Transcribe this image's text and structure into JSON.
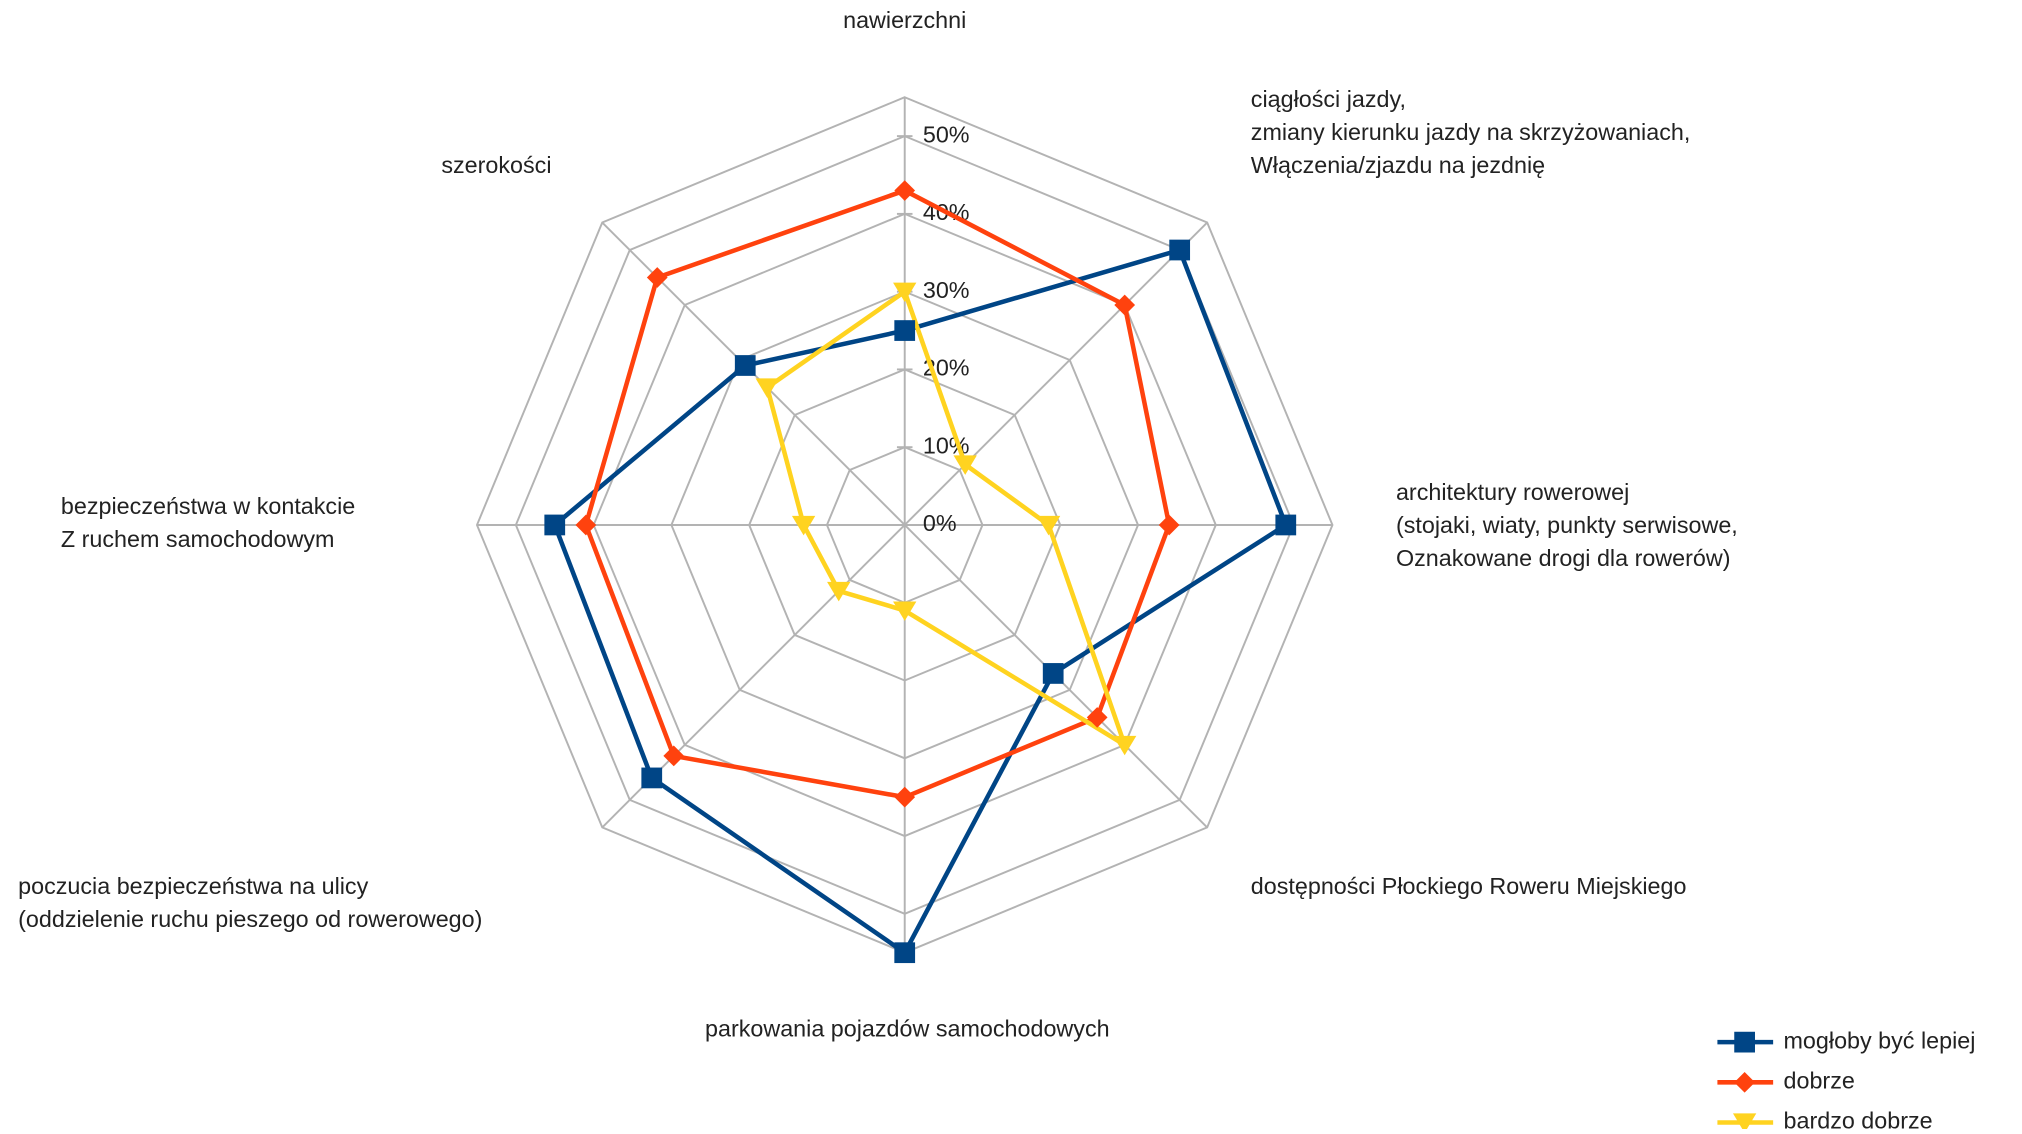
{
  "chart_data": {
    "type": "radar",
    "categories": [
      [
        "nawierzchni"
      ],
      [
        "ciągłości jazdy,",
        "zmiany kierunku jazdy na skrzyżowaniach,",
        "Włączenia/zjazdu na jezdnię"
      ],
      [
        "architektury rowerowej",
        "(stojaki, wiaty, punkty serwisowe,",
        "Oznakowane drogi dla rowerów)"
      ],
      [
        "dostępności Płockiego Roweru Miejskiego"
      ],
      [
        "parkowania pojazdów samochodowych"
      ],
      [
        "poczucia bezpieczeństwa na ulicy",
        "(oddzielenie ruchu pieszego od rowerowego)"
      ],
      [
        "bezpieczeństwa w kontakcie",
        "Z ruchem samochodowym"
      ],
      [
        "szerokości"
      ]
    ],
    "series": [
      {
        "name": "mogłoby być lepiej",
        "color": "#004586",
        "marker": "square",
        "values": [
          25,
          50,
          49,
          27,
          55,
          46,
          45,
          29
        ]
      },
      {
        "name": "dobrze",
        "color": "#ff420e",
        "marker": "diamond",
        "values": [
          43,
          40,
          34,
          35,
          35,
          42,
          41,
          45
        ]
      },
      {
        "name": "bardzo dobrze",
        "color": "#ffd320",
        "marker": "triangle",
        "values": [
          30,
          11,
          18.5,
          40,
          11,
          12,
          13,
          25
        ]
      }
    ],
    "ylim": [
      0,
      55
    ],
    "yticks": [
      {
        "value": 0,
        "label": "0%"
      },
      {
        "value": 10,
        "label": "10%"
      },
      {
        "value": 20,
        "label": "20%"
      },
      {
        "value": 30,
        "label": "30%"
      },
      {
        "value": 40,
        "label": "40%"
      },
      {
        "value": 50,
        "label": "50%"
      }
    ],
    "grid": true,
    "legend": "bottom-right"
  }
}
